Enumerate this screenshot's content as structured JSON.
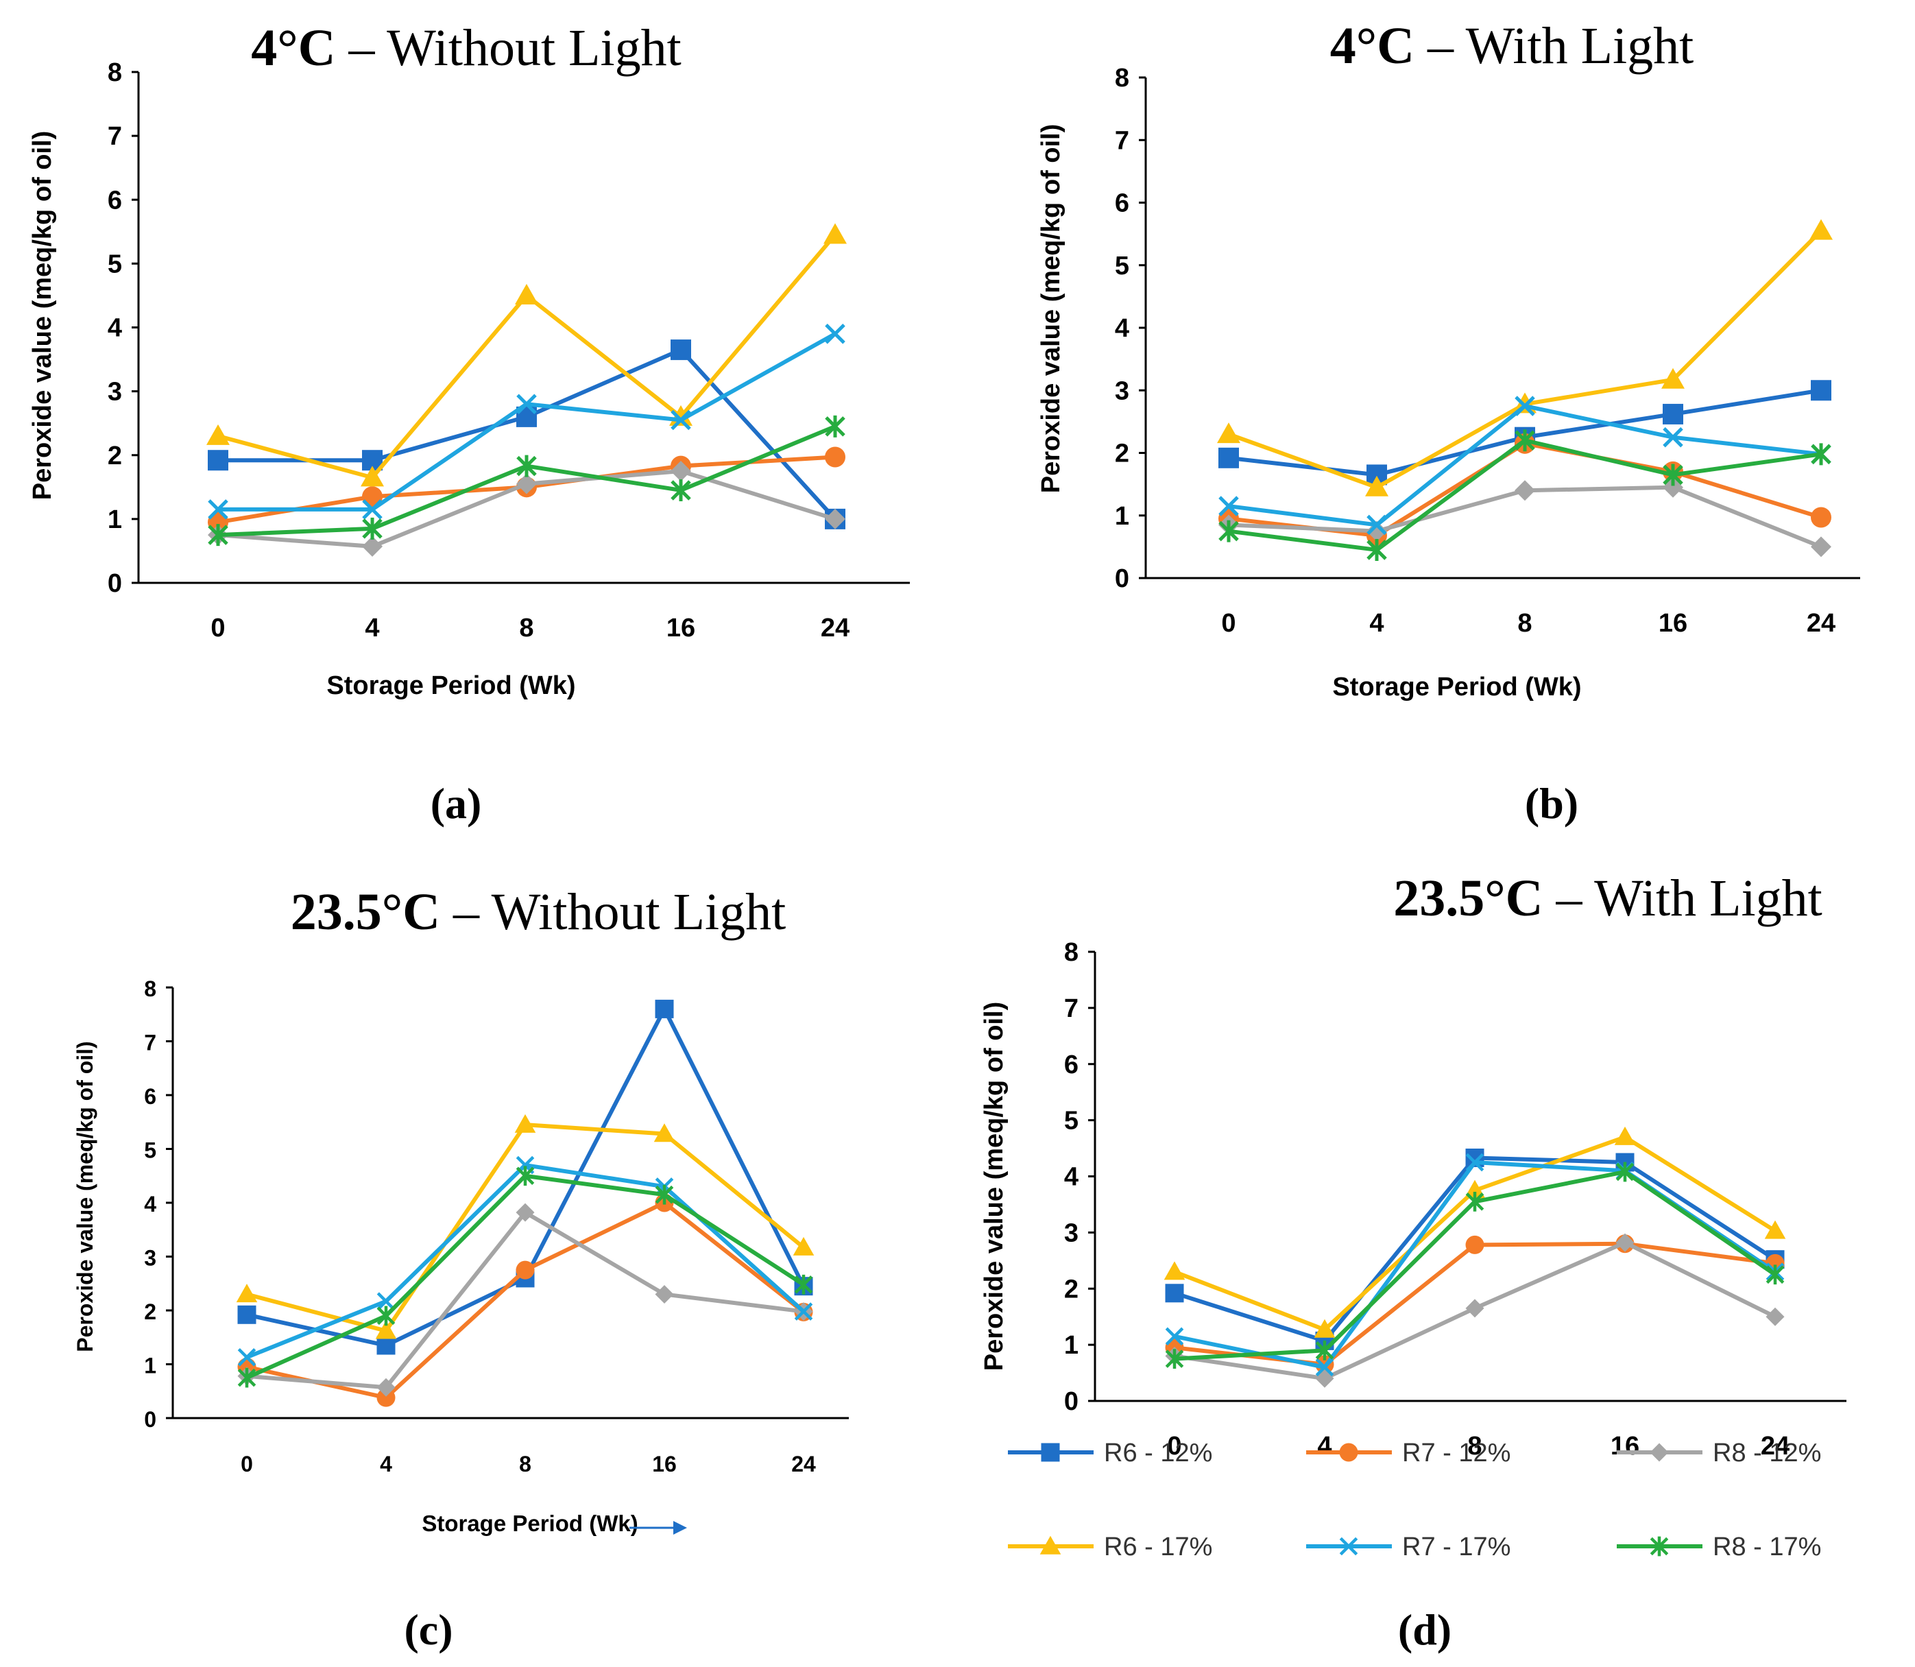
{
  "figure": {
    "panel_labels": [
      "(a)",
      "(b)",
      "(c)",
      "(d)"
    ]
  },
  "legend": {
    "entries": [
      "R6 - 12%",
      "R7 - 12%",
      "R8 - 12%",
      "R6 - 17%",
      "R7 - 17%",
      "R8 - 17%"
    ]
  },
  "series_styles": [
    {
      "name": "R6 - 12%",
      "color": "#1f6fc7",
      "marker": "square"
    },
    {
      "name": "R7 - 12%",
      "color": "#f47b28",
      "marker": "circle"
    },
    {
      "name": "R8 - 12%",
      "color": "#a5a5a5",
      "marker": "diamond"
    },
    {
      "name": "R6 - 17%",
      "color": "#fcc00d",
      "marker": "triangle"
    },
    {
      "name": "R7 - 17%",
      "color": "#1fa5e0",
      "marker": "x"
    },
    {
      "name": "R8 - 17%",
      "color": "#27ac3f",
      "marker": "star"
    }
  ],
  "chart_data": [
    {
      "type": "line",
      "panel": "(a)",
      "title_bold": "4°C",
      "title_rest": " – Without Light",
      "xlabel": "Storage Period (Wk)",
      "ylabel": "Peroxide value (meq/kg of oil)",
      "categories": [
        "0",
        "4",
        "8",
        "16",
        "24"
      ],
      "ylim": [
        0,
        8
      ],
      "yticks": [
        "0",
        "1",
        "2",
        "3",
        "4",
        "5",
        "6",
        "7",
        "8"
      ],
      "series": [
        {
          "name": "R6 - 12%",
          "values": [
            1.92,
            1.92,
            2.6,
            3.65,
            1.0
          ]
        },
        {
          "name": "R7 - 12%",
          "values": [
            0.95,
            1.35,
            1.5,
            1.83,
            1.97
          ]
        },
        {
          "name": "R8 - 12%",
          "values": [
            0.75,
            0.57,
            1.55,
            1.75,
            1.0
          ]
        },
        {
          "name": "R6 - 17%",
          "values": [
            2.3,
            1.65,
            4.5,
            2.6,
            5.45
          ]
        },
        {
          "name": "R7 - 17%",
          "values": [
            1.15,
            1.15,
            2.8,
            2.55,
            3.9
          ]
        },
        {
          "name": "R8 - 17%",
          "values": [
            0.75,
            0.85,
            1.83,
            1.45,
            2.45
          ]
        }
      ]
    },
    {
      "type": "line",
      "panel": "(b)",
      "title_bold": "4°C",
      "title_rest": " – With Light",
      "xlabel": "Storage Period (Wk)",
      "ylabel": "Peroxide value (meq/kg of oil)",
      "categories": [
        "0",
        "4",
        "8",
        "16",
        "24"
      ],
      "ylim": [
        0,
        8
      ],
      "yticks": [
        "0",
        "1",
        "2",
        "3",
        "4",
        "5",
        "6",
        "7",
        "8"
      ],
      "series": [
        {
          "name": "R6 - 12%",
          "values": [
            1.92,
            1.65,
            2.25,
            2.62,
            3.0
          ]
        },
        {
          "name": "R7 - 12%",
          "values": [
            0.95,
            0.68,
            2.15,
            1.7,
            0.97
          ]
        },
        {
          "name": "R8 - 12%",
          "values": [
            0.85,
            0.75,
            1.4,
            1.45,
            0.5
          ]
        },
        {
          "name": "R6 - 17%",
          "values": [
            2.3,
            1.45,
            2.78,
            3.17,
            5.55
          ]
        },
        {
          "name": "R7 - 17%",
          "values": [
            1.15,
            0.85,
            2.75,
            2.25,
            1.98
          ]
        },
        {
          "name": "R8 - 17%",
          "values": [
            0.75,
            0.45,
            2.2,
            1.65,
            1.98
          ]
        }
      ]
    },
    {
      "type": "line",
      "panel": "(c)",
      "title_bold": "23.5°C",
      "title_rest": " – Without Light",
      "xlabel": "Storage Period (Wk)",
      "ylabel": "Peroxide value (meq/kg of oil)",
      "categories": [
        "0",
        "4",
        "8",
        "16",
        "24"
      ],
      "ylim": [
        0,
        8
      ],
      "yticks": [
        "0",
        "1",
        "2",
        "3",
        "4",
        "5",
        "6",
        "7",
        "8"
      ],
      "series": [
        {
          "name": "R6 - 12%",
          "values": [
            1.92,
            1.35,
            2.6,
            7.6,
            2.45
          ]
        },
        {
          "name": "R7 - 12%",
          "values": [
            0.95,
            0.38,
            2.75,
            4.0,
            1.97
          ]
        },
        {
          "name": "R8 - 12%",
          "values": [
            0.78,
            0.57,
            3.82,
            2.3,
            1.98
          ]
        },
        {
          "name": "R6 - 17%",
          "values": [
            2.3,
            1.62,
            5.45,
            5.28,
            3.17
          ]
        },
        {
          "name": "R7 - 17%",
          "values": [
            1.13,
            2.17,
            4.7,
            4.3,
            1.98
          ]
        },
        {
          "name": "R8 - 17%",
          "values": [
            0.75,
            1.9,
            4.5,
            4.15,
            2.48
          ]
        }
      ]
    },
    {
      "type": "line",
      "panel": "(d)",
      "title_bold": "23.5°C",
      "title_rest": " – With Light",
      "xlabel": "",
      "ylabel": "Peroxide value (meq/kg of oil)",
      "categories": [
        "0",
        "4",
        "8",
        "16",
        "24"
      ],
      "ylim": [
        0,
        8
      ],
      "yticks": [
        "0",
        "1",
        "2",
        "3",
        "4",
        "5",
        "6",
        "7",
        "8"
      ],
      "series": [
        {
          "name": "R6 - 12%",
          "values": [
            1.92,
            1.07,
            4.33,
            4.25,
            2.52
          ]
        },
        {
          "name": "R7 - 12%",
          "values": [
            0.95,
            0.65,
            2.78,
            2.8,
            2.45
          ]
        },
        {
          "name": "R8 - 12%",
          "values": [
            0.8,
            0.4,
            1.65,
            2.82,
            1.5
          ]
        },
        {
          "name": "R6 - 17%",
          "values": [
            2.3,
            1.27,
            3.75,
            4.7,
            3.03
          ]
        },
        {
          "name": "R7 - 17%",
          "values": [
            1.15,
            0.6,
            4.25,
            4.1,
            2.3
          ]
        },
        {
          "name": "R8 - 17%",
          "values": [
            0.75,
            0.9,
            3.55,
            4.08,
            2.25
          ]
        }
      ]
    }
  ]
}
